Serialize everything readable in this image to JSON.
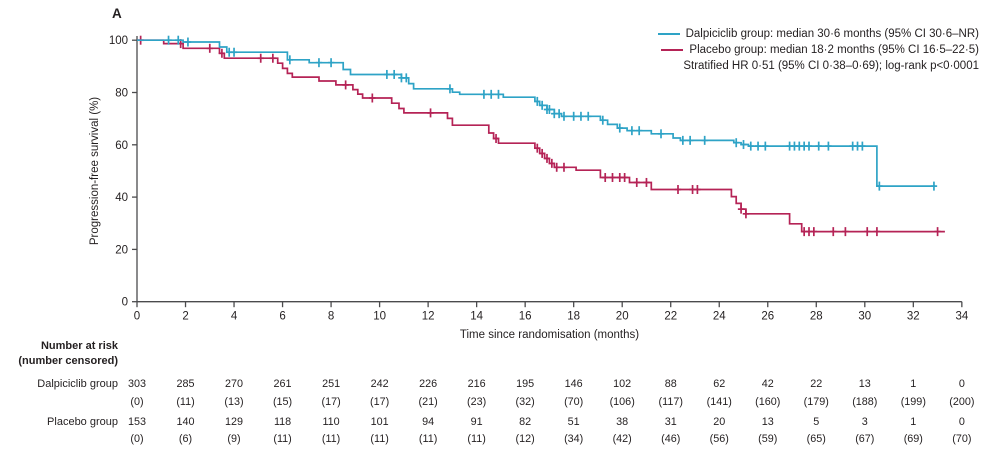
{
  "figure": {
    "panel_label": "A",
    "background": "#ffffff"
  },
  "legend": {
    "entries": [
      {
        "label": "Dalpiciclib group: median 30·6 months (95% CI 30·6–NR)",
        "color": "#2ea3c6"
      },
      {
        "label": "Placebo group: median 18·2 months (95% CI 16·5–22·5)",
        "color": "#b52356"
      }
    ],
    "note": "Stratified HR 0·51 (95% CI 0·38–0·69); log-rank p<0·0001"
  },
  "chart_data": {
    "type": "line",
    "subtype": "kaplan-meier-step",
    "title": "",
    "xlabel": "Time since randomisation (months)",
    "ylabel": "Progression-free survival (%)",
    "xlim": [
      0,
      34
    ],
    "ylim": [
      0,
      100
    ],
    "xticks": [
      0,
      2,
      4,
      6,
      8,
      10,
      12,
      14,
      16,
      18,
      20,
      22,
      24,
      26,
      28,
      30,
      32,
      34
    ],
    "yticks": [
      0,
      20,
      40,
      60,
      80,
      100
    ],
    "grid": false,
    "legend_position": "top-right",
    "axis_color": "#4b4b4d",
    "text_color": "#231f20",
    "series": [
      {
        "name": "Dalpiciclib group",
        "color": "#2ea3c6",
        "steps": [
          [
            0,
            100
          ],
          [
            1.9,
            99.3
          ],
          [
            3.4,
            97.4
          ],
          [
            3.7,
            95.4
          ],
          [
            6.2,
            92.5
          ],
          [
            7.1,
            91.4
          ],
          [
            8.5,
            88.8
          ],
          [
            8.8,
            86.9
          ],
          [
            10.9,
            85.6
          ],
          [
            11.2,
            83.4
          ],
          [
            11.4,
            81.4
          ],
          [
            13.0,
            80.1
          ],
          [
            13.3,
            79.3
          ],
          [
            15.1,
            78.2
          ],
          [
            16.4,
            76.6
          ],
          [
            16.6,
            75.1
          ],
          [
            16.9,
            73.5
          ],
          [
            17.2,
            71.9
          ],
          [
            17.5,
            70.9
          ],
          [
            19.1,
            69.4
          ],
          [
            19.4,
            67.8
          ],
          [
            19.8,
            66.4
          ],
          [
            20.2,
            65.4
          ],
          [
            21.2,
            64.2
          ],
          [
            22.1,
            62.6
          ],
          [
            22.4,
            61.7
          ],
          [
            24.6,
            60.8
          ],
          [
            24.9,
            60.1
          ],
          [
            25.2,
            59.5
          ],
          [
            30.5,
            44.2
          ],
          [
            32.9,
            44.2
          ]
        ],
        "censor_times": [
          1.3,
          1.7,
          2.1,
          3.8,
          4.0,
          6.3,
          7.5,
          8.0,
          10.3,
          10.6,
          10.9,
          11.1,
          12.9,
          14.3,
          14.6,
          14.9,
          16.5,
          16.7,
          16.9,
          17.0,
          17.2,
          17.4,
          17.6,
          18.0,
          18.3,
          18.6,
          19.2,
          19.9,
          20.4,
          20.7,
          21.6,
          22.5,
          22.8,
          23.4,
          24.7,
          25.0,
          25.3,
          25.6,
          25.9,
          26.9,
          27.1,
          27.3,
          27.5,
          27.7,
          28.1,
          28.5,
          29.5,
          29.7,
          29.9,
          30.6,
          32.85
        ]
      },
      {
        "name": "Placebo group",
        "color": "#b52356",
        "steps": [
          [
            0,
            100
          ],
          [
            1.1,
            98.7
          ],
          [
            1.9,
            96.9
          ],
          [
            3.4,
            95.0
          ],
          [
            3.6,
            93.1
          ],
          [
            5.8,
            91.2
          ],
          [
            6.0,
            89.2
          ],
          [
            6.2,
            87.3
          ],
          [
            6.4,
            85.9
          ],
          [
            7.5,
            84.4
          ],
          [
            8.2,
            82.9
          ],
          [
            8.9,
            81.1
          ],
          [
            9.1,
            79.4
          ],
          [
            9.3,
            77.9
          ],
          [
            10.5,
            75.9
          ],
          [
            10.8,
            73.9
          ],
          [
            11.0,
            72.2
          ],
          [
            12.8,
            70.1
          ],
          [
            13.0,
            67.5
          ],
          [
            14.5,
            64.5
          ],
          [
            14.7,
            62.4
          ],
          [
            14.9,
            60.6
          ],
          [
            16.4,
            58.7
          ],
          [
            16.6,
            56.7
          ],
          [
            16.8,
            54.8
          ],
          [
            17.0,
            52.9
          ],
          [
            17.2,
            51.4
          ],
          [
            18.1,
            50.3
          ],
          [
            19.1,
            47.5
          ],
          [
            20.3,
            45.6
          ],
          [
            21.2,
            42.9
          ],
          [
            24.5,
            40.2
          ],
          [
            24.7,
            37.6
          ],
          [
            24.9,
            35.4
          ],
          [
            25.1,
            33.6
          ],
          [
            26.9,
            29.8
          ],
          [
            27.4,
            26.8
          ],
          [
            33.3,
            26.8
          ]
        ],
        "censor_times": [
          0.15,
          1.8,
          3.0,
          3.5,
          5.1,
          5.6,
          8.6,
          9.7,
          12.1,
          14.8,
          16.5,
          16.7,
          16.9,
          17.1,
          17.3,
          17.6,
          19.3,
          19.6,
          19.9,
          20.1,
          20.6,
          21.0,
          22.3,
          22.9,
          23.1,
          24.9,
          25.1,
          27.5,
          27.7,
          27.9,
          28.7,
          29.2,
          30.1,
          30.5,
          33.0
        ]
      }
    ]
  },
  "number_at_risk": {
    "title_line1": "Number at risk",
    "title_line2": "(number censored)",
    "times": [
      0,
      2,
      4,
      6,
      8,
      10,
      12,
      14,
      16,
      18,
      20,
      22,
      24,
      26,
      28,
      30,
      32,
      34
    ],
    "rows": [
      {
        "label": "Dalpiciclib group",
        "at_risk": [
          303,
          285,
          270,
          261,
          251,
          242,
          226,
          216,
          195,
          146,
          102,
          88,
          62,
          42,
          22,
          13,
          1,
          0
        ],
        "censored": [
          0,
          11,
          13,
          15,
          17,
          17,
          21,
          23,
          32,
          70,
          106,
          117,
          141,
          160,
          179,
          188,
          199,
          200
        ]
      },
      {
        "label": "Placebo group",
        "at_risk": [
          153,
          140,
          129,
          118,
          110,
          101,
          94,
          91,
          82,
          51,
          38,
          31,
          20,
          13,
          5,
          3,
          1,
          0
        ],
        "censored": [
          0,
          6,
          9,
          11,
          11,
          11,
          11,
          11,
          12,
          34,
          42,
          46,
          56,
          59,
          65,
          67,
          69,
          70
        ]
      }
    ]
  }
}
